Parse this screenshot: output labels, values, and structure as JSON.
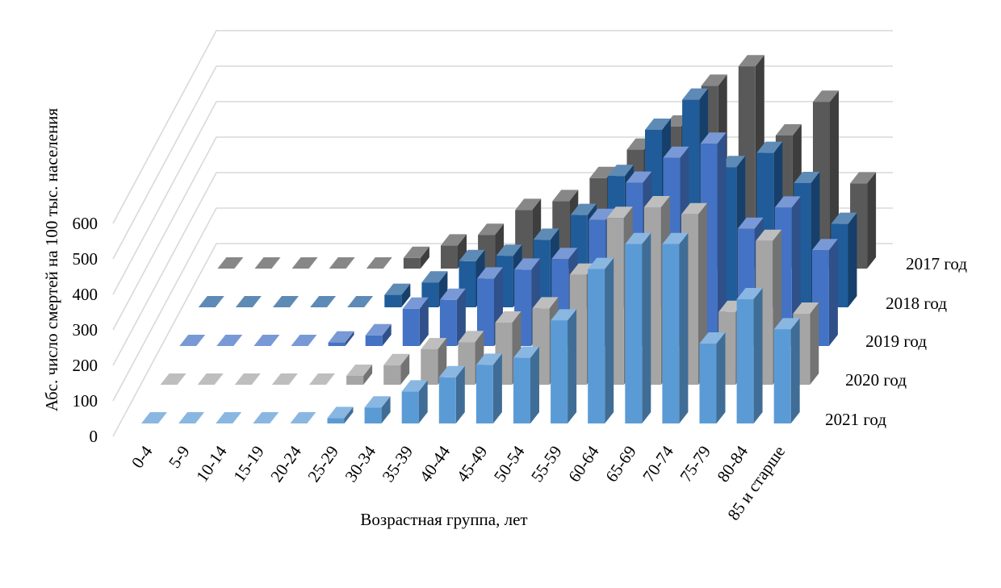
{
  "chart_data": {
    "type": "bar",
    "subtype": "3d-column",
    "title": "",
    "xlabel": "Возрастная группа, лет",
    "ylabel": "Абс. число смертей на 100 тыс. населения",
    "ylim": [
      0,
      600
    ],
    "yticks": [
      "0",
      "100",
      "200",
      "300",
      "400",
      "500",
      "600"
    ],
    "grid": true,
    "categories": [
      "0-4",
      "5-9",
      "10-14",
      "15-19",
      "20-24",
      "25-29",
      "30-34",
      "35-39",
      "40-44",
      "45-49",
      "50-54",
      "55-59",
      "60-64",
      "65-69",
      "70-74",
      "75-79",
      "80-84",
      "85 и старше"
    ],
    "series": [
      {
        "name": "2017 год",
        "color": "#595959",
        "values": [
          0,
          0,
          0,
          0,
          0,
          30,
          65,
          95,
          165,
          190,
          255,
          335,
          400,
          515,
          570,
          375,
          470,
          240
        ]
      },
      {
        "name": "2018 год",
        "color": "#1f5c99",
        "values": [
          0,
          0,
          0,
          0,
          0,
          35,
          70,
          130,
          145,
          190,
          260,
          370,
          500,
          585,
          395,
          435,
          350,
          235
        ]
      },
      {
        "name": "2019 год",
        "color": "#4472c4",
        "values": [
          0,
          0,
          0,
          0,
          10,
          30,
          105,
          130,
          190,
          215,
          245,
          355,
          460,
          530,
          570,
          330,
          390,
          270
        ]
      },
      {
        "name": "2020 год",
        "color": "#a5a5a5",
        "values": [
          0,
          0,
          0,
          0,
          0,
          25,
          55,
          100,
          120,
          175,
          215,
          310,
          470,
          500,
          480,
          205,
          405,
          200
        ]
      },
      {
        "name": "2021 год",
        "color": "#5b9bd5",
        "values": [
          0,
          0,
          0,
          0,
          0,
          15,
          45,
          90,
          130,
          165,
          185,
          290,
          435,
          505,
          505,
          225,
          350,
          265
        ]
      }
    ]
  }
}
